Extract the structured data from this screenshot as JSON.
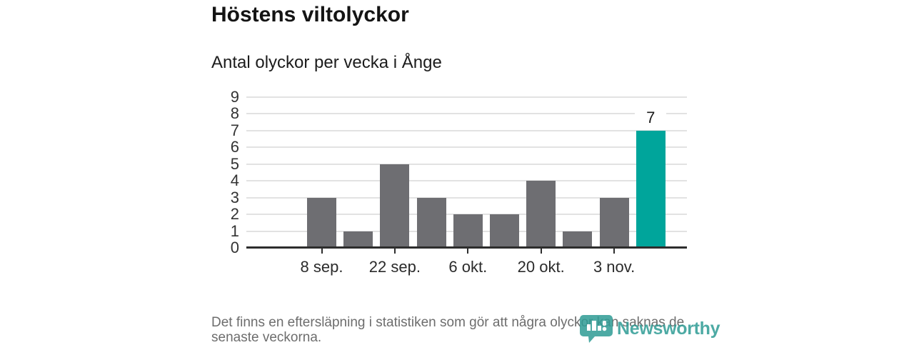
{
  "page": {
    "footer_lines": [
      "Det finns en eftersläpning i statistiken som gör att några olyckor kan saknas de",
      "senaste veckorna."
    ],
    "brand": {
      "name": "Newsworthy",
      "color": "#2f9c95",
      "icon": "bar-chart-pin-icon"
    }
  },
  "chart_data": {
    "type": "bar",
    "title": "Höstens viltolyckor",
    "subtitle": "Antal olyckor per vecka i Ånge",
    "values": [
      3,
      1,
      5,
      3,
      2,
      2,
      4,
      1,
      3,
      7
    ],
    "highlighted_bar_index": 9,
    "bar_value_label": {
      "index": 9,
      "text": "7"
    },
    "x_tick_labels": [
      "8 sep.",
      "22 sep.",
      "6 okt.",
      "20 okt.",
      "3 nov."
    ],
    "x_tick_bar_indexes": [
      0,
      2,
      4,
      6,
      8
    ],
    "y_ticks": [
      0,
      1,
      2,
      3,
      4,
      5,
      6,
      7,
      8,
      9
    ],
    "ylim": [
      0,
      9
    ],
    "grid": "horizontal",
    "legend": "none",
    "colors": {
      "bar": "#6e6e72",
      "highlight": "#00a59b",
      "gridline": "#e2e2e2",
      "axis": "#2d2d2d",
      "tick_text": "#333333"
    }
  }
}
